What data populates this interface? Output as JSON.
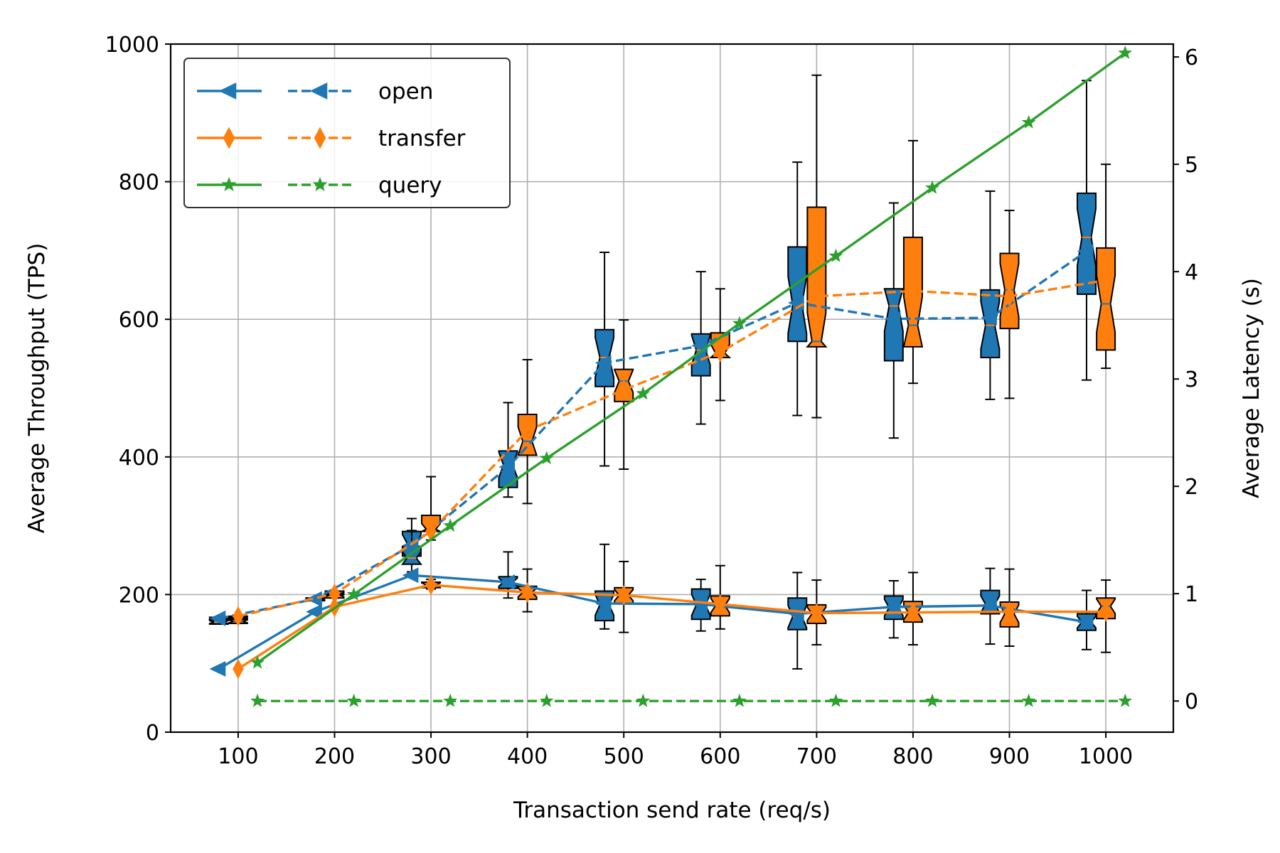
{
  "chart_data": {
    "type": "line",
    "xlabel": "Transaction send rate (req/s)",
    "ylabel_left": "Average Throughput (TPS)",
    "ylabel_right": "Average Latency (s)",
    "x_ticks": [
      "100",
      "200",
      "300",
      "400",
      "500",
      "600",
      "700",
      "800",
      "900",
      "1000"
    ],
    "y_left_ticks": [
      "0",
      "200",
      "400",
      "600",
      "800",
      "1000"
    ],
    "y_right_ticks": [
      "0",
      "1",
      "2",
      "3",
      "4",
      "5",
      "6"
    ],
    "x_range": [
      30,
      1070
    ],
    "y_left_range": [
      0,
      1000
    ],
    "y_right_range": [
      -0.29,
      6.12
    ],
    "grid": true,
    "legend_position": "top-left",
    "legend": [
      {
        "label": "open",
        "color": "#1f77b4",
        "marker": "triangle-left"
      },
      {
        "label": "transfer",
        "color": "#ff7f0e",
        "marker": "thin-diamond"
      },
      {
        "label": "query",
        "color": "#2ca02c",
        "marker": "star"
      }
    ],
    "x": [
      100,
      200,
      300,
      400,
      500,
      600,
      700,
      800,
      900,
      1000
    ],
    "series": [
      {
        "name": "open",
        "metric": "throughput",
        "axis": "left",
        "style": "solid",
        "x_offset": -20,
        "color": "#1f77b4",
        "marker": "triangle-left",
        "values": [
          92,
          175,
          228,
          218,
          187,
          186,
          172,
          182,
          184,
          160
        ]
      },
      {
        "name": "open",
        "metric": "latency",
        "axis": "right",
        "style": "dashed",
        "x_offset": -20,
        "color": "#1f77b4",
        "marker": "triangle-left",
        "values": [
          0.77,
          0.95,
          1.45,
          2.18,
          3.15,
          3.31,
          3.71,
          3.56,
          3.57,
          4.19
        ]
      },
      {
        "name": "transfer",
        "metric": "throughput",
        "axis": "left",
        "style": "solid",
        "x_offset": 0,
        "color": "#ff7f0e",
        "marker": "thin-diamond",
        "values": [
          92,
          182,
          214,
          203,
          199,
          186,
          173,
          174,
          175,
          175
        ]
      },
      {
        "name": "transfer",
        "metric": "latency",
        "axis": "right",
        "style": "dashed",
        "x_offset": 0,
        "color": "#ff7f0e",
        "marker": "thin-diamond",
        "values": [
          0.79,
          1.0,
          1.58,
          2.52,
          2.9,
          3.25,
          3.77,
          3.82,
          3.77,
          3.92
        ]
      },
      {
        "name": "query",
        "metric": "throughput",
        "axis": "left",
        "style": "solid",
        "x_offset": 20,
        "color": "#2ca02c",
        "marker": "star",
        "values": [
          101,
          200,
          300,
          398,
          492,
          594,
          692,
          791,
          886,
          987
        ]
      },
      {
        "name": "query",
        "metric": "latency",
        "axis": "right",
        "style": "dashed",
        "x_offset": 20,
        "color": "#2ca02c",
        "marker": "star",
        "values": [
          0.0,
          0.0,
          0.0,
          0.0,
          0.0,
          0.0,
          0.0,
          0.0,
          0.0,
          0.0
        ]
      }
    ],
    "boxplots": [
      {
        "name": "open",
        "metric": "latency",
        "x_offset": -20,
        "color": "#1f77b4",
        "axis": "right",
        "boxes": [
          {
            "whislo": 0.76,
            "q1": 0.76,
            "med": 0.77,
            "q3": 0.78,
            "whishi": 0.78
          },
          {
            "whislo": 0.94,
            "q1": 0.94,
            "med": 0.95,
            "q3": 0.96,
            "whishi": 0.96
          },
          {
            "whislo": 1.3,
            "q1": 1.35,
            "med": 1.47,
            "q3": 1.58,
            "whishi": 1.7
          },
          {
            "whislo": 1.9,
            "q1": 1.99,
            "med": 2.2,
            "q3": 2.33,
            "whishi": 2.78
          },
          {
            "whislo": 2.19,
            "q1": 2.93,
            "med": 3.2,
            "q3": 3.46,
            "whishi": 4.18
          },
          {
            "whislo": 2.58,
            "q1": 3.03,
            "med": 3.27,
            "q3": 3.42,
            "whishi": 4.0
          },
          {
            "whislo": 2.66,
            "q1": 3.35,
            "med": 3.69,
            "q3": 4.23,
            "whishi": 5.02
          },
          {
            "whislo": 2.45,
            "q1": 3.17,
            "med": 3.68,
            "q3": 3.84,
            "whishi": 4.64
          },
          {
            "whislo": 2.81,
            "q1": 3.2,
            "med": 3.5,
            "q3": 3.83,
            "whishi": 4.75
          },
          {
            "whislo": 2.99,
            "q1": 3.79,
            "med": 4.32,
            "q3": 4.73,
            "whishi": 5.78
          }
        ]
      },
      {
        "name": "transfer",
        "metric": "latency",
        "axis": "right",
        "x_offset": 0,
        "color": "#ff7f0e",
        "boxes": [
          {
            "whislo": 0.77,
            "q1": 0.77,
            "med": 0.78,
            "q3": 0.79,
            "whishi": 0.79
          },
          {
            "whislo": 0.99,
            "q1": 0.99,
            "med": 1.0,
            "q3": 1.01,
            "whishi": 1.02
          },
          {
            "whislo": 1.5,
            "q1": 1.58,
            "med": 1.6,
            "q3": 1.73,
            "whishi": 2.09
          },
          {
            "whislo": 1.84,
            "q1": 2.29,
            "med": 2.42,
            "q3": 2.67,
            "whishi": 3.18
          },
          {
            "whislo": 2.16,
            "q1": 2.79,
            "med": 2.98,
            "q3": 3.09,
            "whishi": 3.55
          },
          {
            "whislo": 2.8,
            "q1": 3.2,
            "med": 3.24,
            "q3": 3.43,
            "whishi": 3.84
          },
          {
            "whislo": 2.64,
            "q1": 3.3,
            "med": 3.35,
            "q3": 4.6,
            "whishi": 5.83
          },
          {
            "whislo": 2.96,
            "q1": 3.3,
            "med": 3.5,
            "q3": 4.32,
            "whishi": 5.22
          },
          {
            "whislo": 2.82,
            "q1": 3.47,
            "med": 3.83,
            "q3": 4.17,
            "whishi": 4.57
          },
          {
            "whislo": 3.1,
            "q1": 3.27,
            "med": 3.7,
            "q3": 4.22,
            "whishi": 5.0
          }
        ]
      },
      {
        "name": "open",
        "metric": "throughput",
        "axis": "left",
        "x_offset": -20,
        "color": "#1f77b4",
        "boxes": [
          {
            "whislo": 157,
            "q1": 157,
            "med": 160,
            "q3": 163,
            "whishi": 163
          },
          {
            "whislo": 191,
            "q1": 191,
            "med": 193,
            "q3": 195,
            "whishi": 195
          },
          {
            "whislo": 233,
            "q1": 244,
            "med": 253,
            "q3": 270,
            "whishi": 293
          },
          {
            "whislo": 195,
            "q1": 209,
            "med": 218,
            "q3": 226,
            "whishi": 262
          },
          {
            "whislo": 150,
            "q1": 162,
            "med": 185,
            "q3": 205,
            "whishi": 273
          },
          {
            "whislo": 147,
            "q1": 164,
            "med": 185,
            "q3": 208,
            "whishi": 222
          },
          {
            "whislo": 92,
            "q1": 149,
            "med": 168,
            "q3": 195,
            "whishi": 232
          },
          {
            "whislo": 137,
            "q1": 164,
            "med": 181,
            "q3": 198,
            "whishi": 220
          },
          {
            "whislo": 128,
            "q1": 172,
            "med": 186,
            "q3": 206,
            "whishi": 238
          },
          {
            "whislo": 120,
            "q1": 148,
            "med": 160,
            "q3": 172,
            "whishi": 206
          }
        ]
      },
      {
        "name": "transfer",
        "metric": "throughput",
        "axis": "left",
        "x_offset": 0,
        "color": "#ff7f0e",
        "boxes": [
          {
            "whislo": 158,
            "q1": 158,
            "med": 161,
            "q3": 164,
            "whishi": 164
          },
          {
            "whislo": 195,
            "q1": 195,
            "med": 200,
            "q3": 205,
            "whishi": 205
          },
          {
            "whislo": 208,
            "q1": 210,
            "med": 214,
            "q3": 218,
            "whishi": 222
          },
          {
            "whislo": 175,
            "q1": 193,
            "med": 203,
            "q3": 212,
            "whishi": 237
          },
          {
            "whislo": 145,
            "q1": 187,
            "med": 199,
            "q3": 210,
            "whishi": 248
          },
          {
            "whislo": 150,
            "q1": 169,
            "med": 184,
            "q3": 198,
            "whishi": 242
          },
          {
            "whislo": 127,
            "q1": 158,
            "med": 172,
            "q3": 185,
            "whishi": 221
          },
          {
            "whislo": 127,
            "q1": 160,
            "med": 174,
            "q3": 190,
            "whishi": 232
          },
          {
            "whislo": 125,
            "q1": 153,
            "med": 172,
            "q3": 189,
            "whishi": 237
          },
          {
            "whislo": 116,
            "q1": 165,
            "med": 183,
            "q3": 195,
            "whishi": 221
          }
        ]
      }
    ]
  }
}
